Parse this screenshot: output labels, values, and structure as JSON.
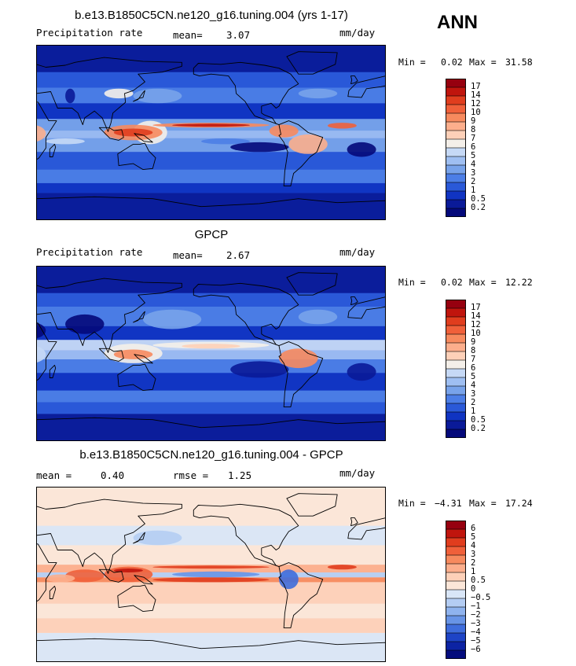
{
  "header": {
    "season": "ANN"
  },
  "panels": [
    {
      "title": "b.e13.B1850C5CN.ne120_g16.tuning.004 (yrs 1-17)",
      "left_label": "Precipitation rate",
      "stat1_label": "mean=",
      "stat1_value": "3.07",
      "stat2_label": "",
      "stat2_value": "",
      "units": "mm/day",
      "min_label": "Min =",
      "min_value": "0.02",
      "max_label": "Max =",
      "max_value": "31.58",
      "colorbar": {
        "labels": [
          "17",
          "14",
          "12",
          "10",
          "9",
          "8",
          "7",
          "6",
          "5",
          "4",
          "3",
          "2",
          "1",
          "0.5",
          "0.2"
        ],
        "colors": [
          "#96000f",
          "#c0150d",
          "#e03d1e",
          "#f0603a",
          "#f78a5e",
          "#fcae8c",
          "#fdd0b8",
          "#f4efe9",
          "#c6d9f6",
          "#9fbff2",
          "#78a3ea",
          "#4c7ee6",
          "#2a59d8",
          "#1034c2",
          "#0a1a98",
          "#04097a"
        ]
      },
      "map_style": "precip"
    },
    {
      "title": "GPCP",
      "left_label": "Precipitation rate",
      "stat1_label": "mean=",
      "stat1_value": "2.67",
      "stat2_label": "",
      "stat2_value": "",
      "units": "mm/day",
      "min_label": "Min =",
      "min_value": "0.02",
      "max_label": "Max =",
      "max_value": "12.22",
      "colorbar": {
        "labels": [
          "17",
          "14",
          "12",
          "10",
          "9",
          "8",
          "7",
          "6",
          "5",
          "4",
          "3",
          "2",
          "1",
          "0.5",
          "0.2"
        ],
        "colors": [
          "#96000f",
          "#c0150d",
          "#e03d1e",
          "#f0603a",
          "#f78a5e",
          "#fcae8c",
          "#fdd0b8",
          "#f4efe9",
          "#c6d9f6",
          "#9fbff2",
          "#78a3ea",
          "#4c7ee6",
          "#2a59d8",
          "#1034c2",
          "#0a1a98",
          "#04097a"
        ]
      },
      "map_style": "obs"
    },
    {
      "title": "b.e13.B1850C5CN.ne120_g16.tuning.004 - GPCP",
      "left_label": "",
      "stat1_label": "mean =",
      "stat1_value": "0.40",
      "stat2_label": "rmse =",
      "stat2_value": "1.25",
      "units": "mm/day",
      "min_label": "Min =",
      "min_value": "−4.31",
      "max_label": "Max =",
      "max_value": "17.24",
      "colorbar": {
        "labels": [
          "6",
          "5",
          "4",
          "3",
          "2",
          "1",
          "0.5",
          "0",
          "−0.5",
          "−1",
          "−2",
          "−3",
          "−4",
          "−5",
          "−6"
        ],
        "colors": [
          "#96000f",
          "#c0150d",
          "#e03d1e",
          "#f0603a",
          "#f78a5e",
          "#fcae8c",
          "#fdd0b8",
          "#fbe6d8",
          "#d9e6f7",
          "#b4cdf3",
          "#8fb3ee",
          "#6894e6",
          "#3f6ddc",
          "#1e44c6",
          "#0c23a3",
          "#040c7d"
        ]
      },
      "map_style": "diff"
    }
  ]
}
